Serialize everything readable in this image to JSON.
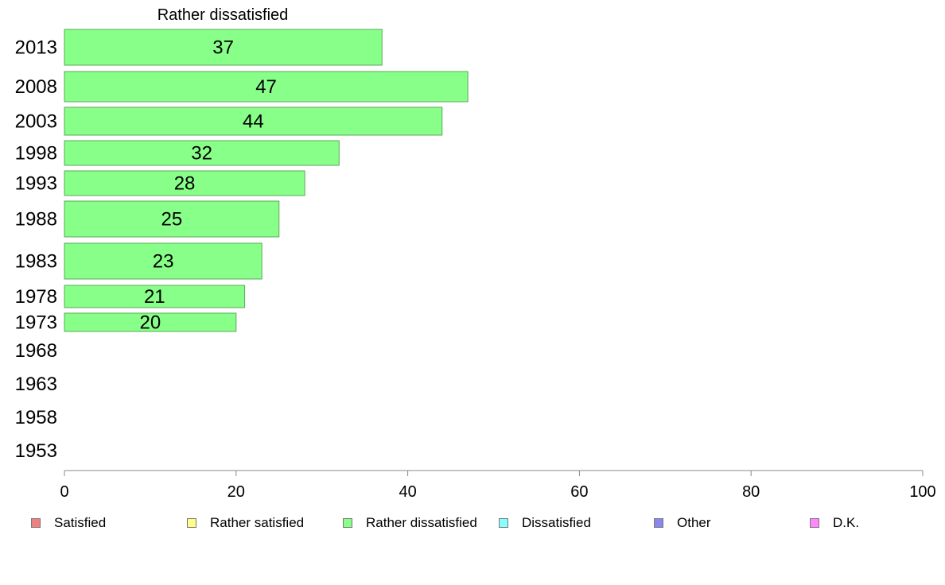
{
  "chart_data": {
    "type": "bar",
    "orientation": "horizontal",
    "title": "Rather dissatisfied",
    "categories": [
      "2013",
      "2008",
      "2003",
      "1998",
      "1993",
      "1988",
      "1983",
      "1978",
      "1973",
      "1968",
      "1963",
      "1958",
      "1953"
    ],
    "values": [
      37,
      47,
      44,
      32,
      28,
      25,
      23,
      21,
      20,
      null,
      null,
      null,
      null
    ],
    "data_labels": [
      "37",
      "47",
      "44",
      "32",
      "28",
      "25",
      "23",
      "21",
      "20",
      "",
      "",
      "",
      ""
    ],
    "xlim": [
      0,
      100
    ],
    "x_ticks": [
      "0",
      "20",
      "40",
      "60",
      "80",
      "100"
    ],
    "grid": false,
    "legend_placement": "bottom",
    "bar_color": "#88ff88",
    "bar_border_color": "#5aa85a",
    "legend": [
      {
        "label": "Satisfied",
        "color": "#f08080"
      },
      {
        "label": "Rather satisfied",
        "color": "#ffff88"
      },
      {
        "label": "Rather dissatisfied",
        "color": "#88ff88"
      },
      {
        "label": "Dissatisfied",
        "color": "#88ffff"
      },
      {
        "label": "Other",
        "color": "#8888ee"
      },
      {
        "label": "D.K.",
        "color": "#ff88ff"
      }
    ]
  }
}
